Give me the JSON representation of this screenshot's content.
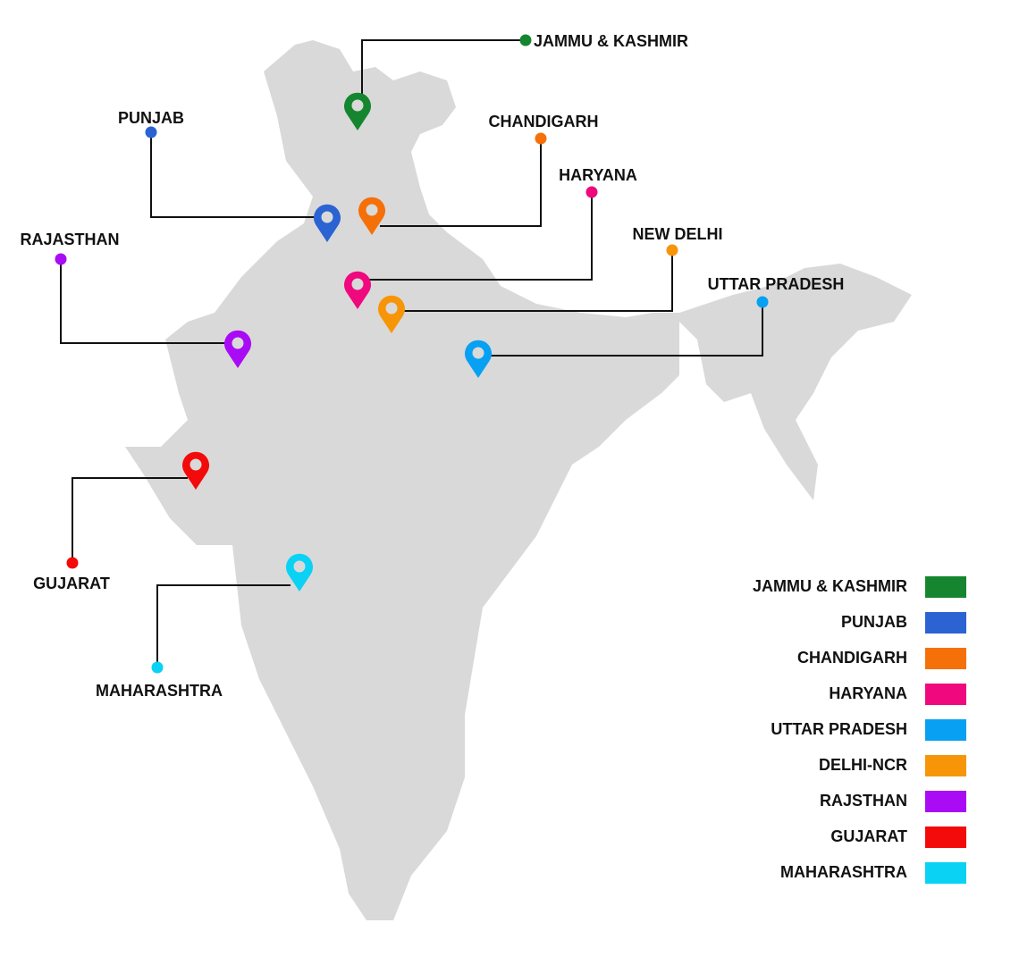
{
  "markers": [
    {
      "label": "JAMMU & KASHMIR",
      "color": "#15862f"
    },
    {
      "label": "PUNJAB",
      "color": "#2b63d2"
    },
    {
      "label": "CHANDIGARH",
      "color": "#f57008"
    },
    {
      "label": "HARYANA",
      "color": "#ef087e"
    },
    {
      "label": "NEW DELHI",
      "color": "#f79508"
    },
    {
      "label": "UTTAR PRADESH",
      "color": "#08a0f2"
    },
    {
      "label": "RAJASTHAN",
      "color": "#a90bf5"
    },
    {
      "label": "GUJARAT",
      "color": "#f30a0a"
    },
    {
      "label": "MAHARASHTRA",
      "color": "#0ad2f5"
    }
  ],
  "legend": [
    {
      "label": "JAMMU & KASHMIR",
      "color": "#15862f"
    },
    {
      "label": "PUNJAB",
      "color": "#2b63d2"
    },
    {
      "label": "CHANDIGARH",
      "color": "#f57008"
    },
    {
      "label": "HARYANA",
      "color": "#ef087e"
    },
    {
      "label": "UTTAR PRADESH",
      "color": "#08a0f2"
    },
    {
      "label": "DELHI-NCR",
      "color": "#f79508"
    },
    {
      "label": "RAJSTHAN",
      "color": "#a90bf5"
    },
    {
      "label": "GUJARAT",
      "color": "#f30a0a"
    },
    {
      "label": "MAHARASHTRA",
      "color": "#0ad2f5"
    }
  ]
}
